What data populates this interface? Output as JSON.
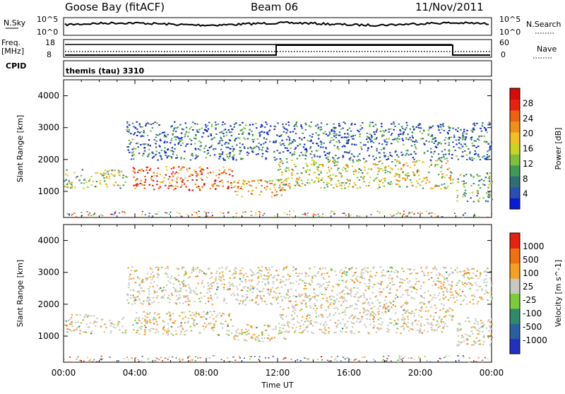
{
  "header": {
    "radar": "Goose Bay (fitACF)",
    "beam": "Beam 06",
    "date": "11/Nov/2011"
  },
  "strip_labels": {
    "nsky": "N.Sky",
    "nsearch": "N.Search",
    "freq_line1": "Freq.",
    "freq_line2": "[MHz]",
    "nave": "Nave",
    "cpid": "CPID",
    "cpid_value": "themis (tau) 3310",
    "log_hi": "10^5",
    "log_lo": "10^0",
    "freq_hi": "18",
    "freq_lo": "8",
    "nave_hi": "60",
    "nave_lo": "0"
  },
  "chart_data": [
    {
      "type": "heatmap",
      "title": "",
      "xlabel": "Time UT",
      "ylabel": "Slant Range [km]",
      "x_ticks": [
        "00:00",
        "04:00",
        "08:00",
        "12:00",
        "16:00",
        "20:00",
        "00:00"
      ],
      "x_range_hours": [
        0,
        24
      ],
      "y_ticks": [
        "1000",
        "2000",
        "3000",
        "4000"
      ],
      "ylim_km": [
        180,
        4500
      ],
      "colorbar": {
        "label": "Power [dB]",
        "ticks": [
          "4",
          "8",
          "12",
          "16",
          "20",
          "24",
          "28"
        ],
        "colors": [
          "#0a1bd8",
          "#2a4fb0",
          "#2e6f74",
          "#3f9a5a",
          "#7fc03a",
          "#c8d420",
          "#f0c020",
          "#f09018",
          "#f06010",
          "#e82010",
          "#d80a0a"
        ]
      },
      "bands": [
        {
          "t0": 0,
          "t1": 3.5,
          "r0": 1100,
          "r1": 1700,
          "level": 0.45
        },
        {
          "t0": 3.8,
          "t1": 9.5,
          "r0": 1050,
          "r1": 1800,
          "level": 0.8
        },
        {
          "t0": 9.5,
          "t1": 12.5,
          "r0": 850,
          "r1": 1400,
          "level": 0.65
        },
        {
          "t0": 12.0,
          "t1": 21.8,
          "r0": 1100,
          "r1": 2000,
          "level": 0.5
        },
        {
          "t0": 3.5,
          "t1": 24,
          "r0": 2000,
          "r1": 3200,
          "level": 0.2
        },
        {
          "t0": 22,
          "t1": 24,
          "r0": 700,
          "r1": 1600,
          "level": 0.35
        }
      ]
    },
    {
      "type": "heatmap",
      "title": "",
      "xlabel": "Time UT",
      "ylabel": "Slant Range [km]",
      "x_ticks": [
        "00:00",
        "04:00",
        "08:00",
        "12:00",
        "16:00",
        "20:00",
        "00:00"
      ],
      "x_range_hours": [
        0,
        24
      ],
      "y_ticks": [
        "1000",
        "2000",
        "3000",
        "4000"
      ],
      "ylim_km": [
        180,
        4500
      ],
      "colorbar": {
        "label": "Velocity [m s^-1]",
        "ticks": [
          "1000",
          "500",
          "100",
          "25",
          "-25",
          "-100",
          "-500",
          "-1000"
        ],
        "colors": [
          "#2030c0",
          "#2a5fa0",
          "#2f8a6a",
          "#7ccc3a",
          "#c8c8c0",
          "#f5a020",
          "#f07010",
          "#e82010"
        ]
      },
      "bands": [
        {
          "t0": 0,
          "t1": 3.5,
          "r0": 1100,
          "r1": 1700,
          "level": 0.35
        },
        {
          "t0": 3.8,
          "t1": 9.5,
          "r0": 1050,
          "r1": 1800,
          "level": 0.7
        },
        {
          "t0": 9.5,
          "t1": 12.5,
          "r0": 850,
          "r1": 1400,
          "level": 0.6
        },
        {
          "t0": 12.0,
          "t1": 21.8,
          "r0": 1100,
          "r1": 2000,
          "level": 0.45
        },
        {
          "t0": 3.5,
          "t1": 24,
          "r0": 2000,
          "r1": 3200,
          "level": 0.45
        },
        {
          "t0": 22,
          "t1": 24,
          "r0": 700,
          "r1": 1600,
          "level": 0.3
        }
      ]
    }
  ]
}
